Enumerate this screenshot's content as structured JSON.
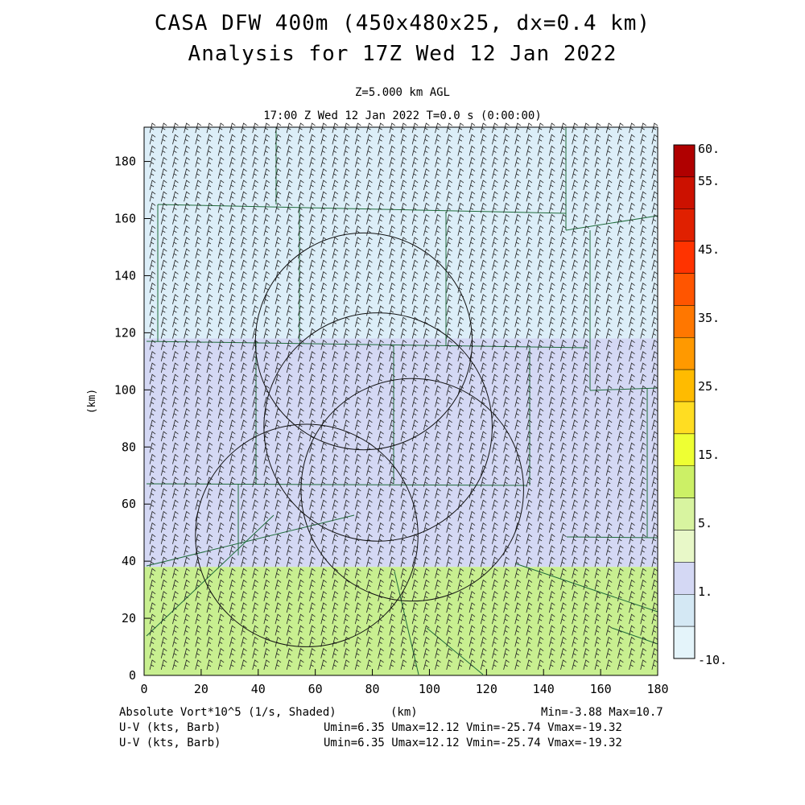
{
  "title_line1": "CASA DFW 400m (450x480x25, dx=0.4 km)",
  "title_line2": "Analysis for 17Z Wed 12 Jan 2022",
  "level_label": "Z=5.000 km AGL",
  "time_label": "17:00 Z Wed 12 Jan 2022    T=0.0 s (0:00:00)",
  "footer": {
    "field_label": "Absolute Vort*10^5 (1/s, Shaded)",
    "x_unit": "(km)",
    "minmax": "Min=-3.88 Max=10.7",
    "uv1_label": "U-V (kts, Barb)",
    "uv1_range": "Umin=6.35 Umax=12.12 Vmin=-25.74 Vmax=-19.32",
    "uv2_label": "U-V (kts, Barb)",
    "uv2_range": "Umin=6.35 Umax=12.12 Vmin=-25.74 Vmax=-19.32"
  },
  "chart_data": {
    "type": "heatmap",
    "xlabel": "(km)",
    "ylabel": "(km)",
    "xlim": [
      0,
      180
    ],
    "ylim": [
      0,
      192
    ],
    "xticks": [
      0,
      20,
      40,
      60,
      80,
      100,
      120,
      140,
      160,
      180
    ],
    "yticks": [
      0,
      20,
      40,
      60,
      80,
      100,
      120,
      140,
      160,
      180
    ],
    "colorbar": {
      "labels": [
        "60.",
        "55.",
        "45.",
        "35.",
        "25.",
        "15.",
        "5.",
        "1.",
        "-10."
      ],
      "colors": [
        "#b00000",
        "#cc1100",
        "#e02000",
        "#ff3300",
        "#ff5500",
        "#ff7700",
        "#ff9900",
        "#ffbb00",
        "#ffdd22",
        "#eeff33",
        "#ccf066",
        "#d8f4a0",
        "#e8f8c8",
        "#d4d8f4",
        "#d4e8f4",
        "#e4f4fa"
      ]
    },
    "regions": [
      {
        "label": "upper band",
        "y_range": [
          38,
          192
        ],
        "color": "#dceef8"
      },
      {
        "label": "middle band",
        "y_range": [
          38,
          118
        ],
        "color": "#d4d8f4"
      },
      {
        "label": "lower band",
        "y_range": [
          0,
          38
        ],
        "color": "#c8ef90"
      }
    ],
    "radar_rings_km": [
      {
        "center": [
          77,
          117
        ],
        "radius": 38
      },
      {
        "center": [
          57,
          49
        ],
        "radius": 39
      },
      {
        "center": [
          94,
          65
        ],
        "radius": 39
      },
      {
        "center": [
          82,
          87
        ],
        "radius": 40
      }
    ],
    "wind_barbs": {
      "u_kts": [
        6.35,
        12.12
      ],
      "v_kts": [
        -25.74,
        -19.32
      ],
      "spacing_km": 4
    }
  }
}
